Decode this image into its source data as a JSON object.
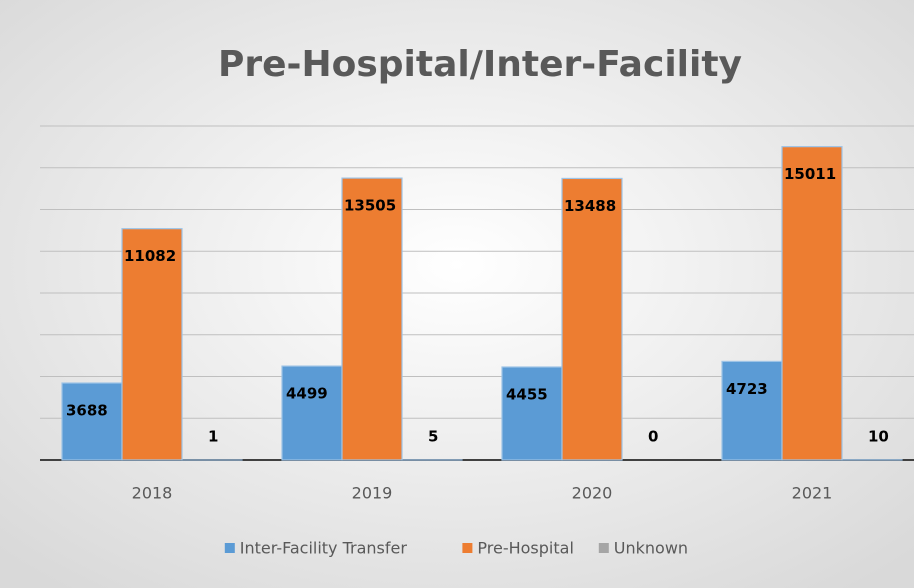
{
  "chart_data": {
    "type": "bar",
    "title": "Pre-Hospital/Inter-Facility",
    "categories": [
      "2018",
      "2019",
      "2020",
      "2021"
    ],
    "series": [
      {
        "name": "Inter-Facility Transfer",
        "color": "#5b9bd5",
        "values": [
          3688,
          4499,
          4455,
          4723
        ]
      },
      {
        "name": "Pre-Hospital",
        "color": "#ed7d31",
        "values": [
          11082,
          13505,
          13488,
          15011
        ]
      },
      {
        "name": "Unknown",
        "color": "#a5a5a5",
        "values": [
          1,
          5,
          0,
          10
        ]
      }
    ],
    "ylim": [
      0,
      16000
    ],
    "yticks": [
      0,
      2000,
      4000,
      6000,
      8000,
      10000,
      12000,
      14000,
      16000
    ],
    "grid": true,
    "legend": "bottom"
  }
}
